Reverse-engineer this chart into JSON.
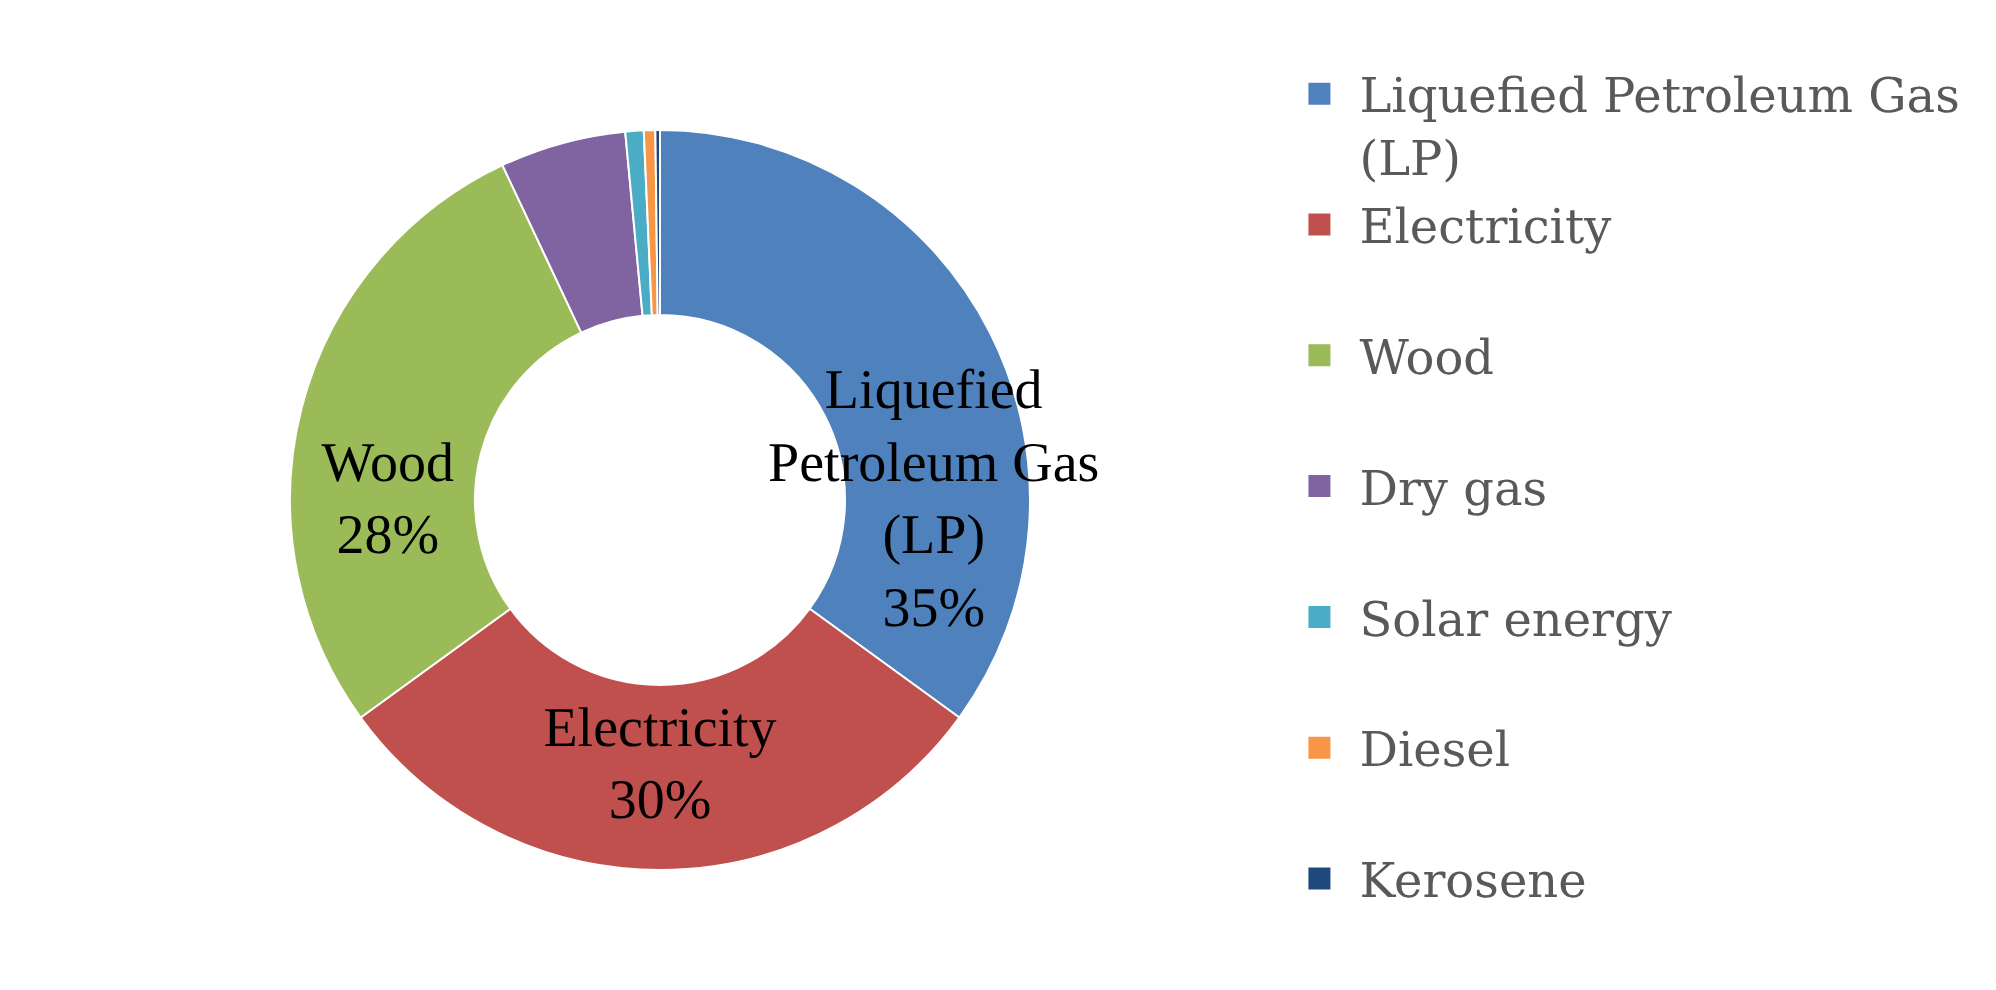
{
  "chart_data": {
    "type": "donut",
    "categories": [
      "Liquefied Petroleum Gas (LP)",
      "Electricity",
      "Wood",
      "Dry gas",
      "Solar energy",
      "Diesel",
      "Kerosene"
    ],
    "values": [
      35,
      30,
      28,
      5.5,
      0.8,
      0.5,
      0.2
    ],
    "colors": [
      "#4f81bd",
      "#c0504d",
      "#9bbb59",
      "#8064a2",
      "#4bacc6",
      "#f79646",
      "#1f497d"
    ],
    "value_labels": [
      "35%",
      "30%",
      "28%",
      null,
      null,
      null,
      null
    ],
    "legend": "right"
  }
}
